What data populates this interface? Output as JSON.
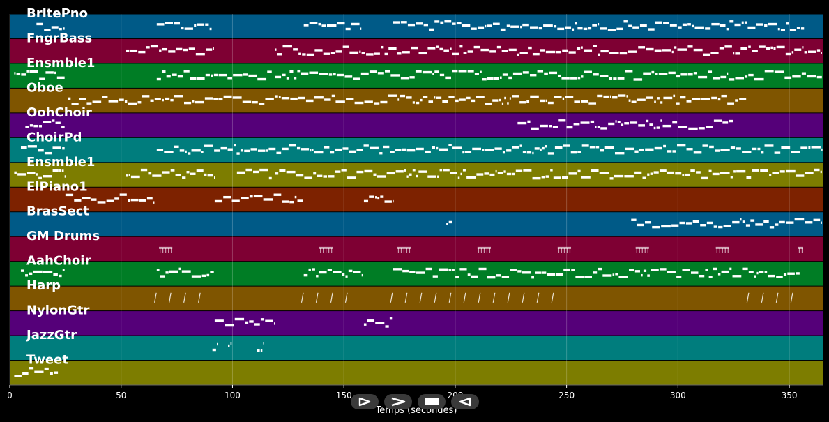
{
  "chart_data": {
    "type": "piano-roll",
    "xlabel": "Temps (secondes)",
    "xlim": [
      0,
      365
    ],
    "xticks": [
      0,
      50,
      100,
      150,
      200,
      250,
      300,
      350
    ],
    "grid": true,
    "tracks": [
      {
        "name": "BritePno",
        "color": "#005a87",
        "regions": [
          [
            12,
            25
          ],
          [
            66,
            91
          ],
          [
            132,
            158
          ],
          [
            172,
            357
          ]
        ]
      },
      {
        "name": "FngrBass",
        "color": "#7e0033",
        "regions": [
          [
            52,
            92
          ],
          [
            119,
            365
          ]
        ]
      },
      {
        "name": "Ensmble1",
        "color": "#007d25",
        "regions": [
          [
            2,
            25
          ],
          [
            66,
            118
          ],
          [
            119,
            365
          ]
        ]
      },
      {
        "name": "Oboe",
        "color": "#7f5500",
        "regions": [
          [
            26,
            331
          ]
        ]
      },
      {
        "name": "OohChoir",
        "color": "#550079",
        "regions": [
          [
            7,
            25
          ],
          [
            228,
            325
          ]
        ]
      },
      {
        "name": "ChoirPd",
        "color": "#007d7d",
        "regions": [
          [
            5,
            25
          ],
          [
            66,
            365
          ]
        ]
      },
      {
        "name": "Ensmble1",
        "color": "#7d7d00",
        "regions": [
          [
            2,
            25
          ],
          [
            52,
            92
          ],
          [
            102,
            118
          ],
          [
            119,
            365
          ]
        ]
      },
      {
        "name": "ElPiano1",
        "color": "#7d2200",
        "regions": [
          [
            25,
            65
          ],
          [
            92,
            132
          ],
          [
            159,
            172
          ]
        ]
      },
      {
        "name": "BrasSect",
        "color": "#005a87",
        "regions": [
          [
            196,
            199
          ],
          [
            279,
            365
          ]
        ]
      },
      {
        "name": "GM Drums",
        "color": "#7e0033",
        "regions": [
          [
            67,
            73
          ],
          [
            139,
            145
          ],
          [
            174,
            180
          ],
          [
            210,
            216
          ],
          [
            246,
            252
          ],
          [
            281,
            287
          ],
          [
            317,
            323
          ],
          [
            354,
            356
          ]
        ]
      },
      {
        "name": "AahChoir",
        "color": "#007d25",
        "regions": [
          [
            5,
            25
          ],
          [
            66,
            92
          ],
          [
            132,
            158
          ],
          [
            172,
            355
          ]
        ]
      },
      {
        "name": "Harp",
        "color": "#7f5500",
        "regions": [
          [
            65,
            87
          ],
          [
            131,
            152
          ],
          [
            171,
            245
          ],
          [
            331,
            352
          ]
        ]
      },
      {
        "name": "NylonGtr",
        "color": "#550079",
        "regions": [
          [
            92,
            119
          ],
          [
            159,
            172
          ]
        ]
      },
      {
        "name": "JazzGtr",
        "color": "#007d7d",
        "regions": [
          [
            91,
            93
          ],
          [
            98,
            100
          ],
          [
            111,
            114
          ]
        ]
      },
      {
        "name": "Tweet",
        "color": "#7d7d00",
        "regions": [
          [
            2,
            22
          ]
        ]
      }
    ]
  },
  "controls": {
    "play_icon": "play-icon",
    "forward_icon": "forward-icon",
    "stop_icon": "stop-icon",
    "rewind_icon": "rewind-icon"
  }
}
